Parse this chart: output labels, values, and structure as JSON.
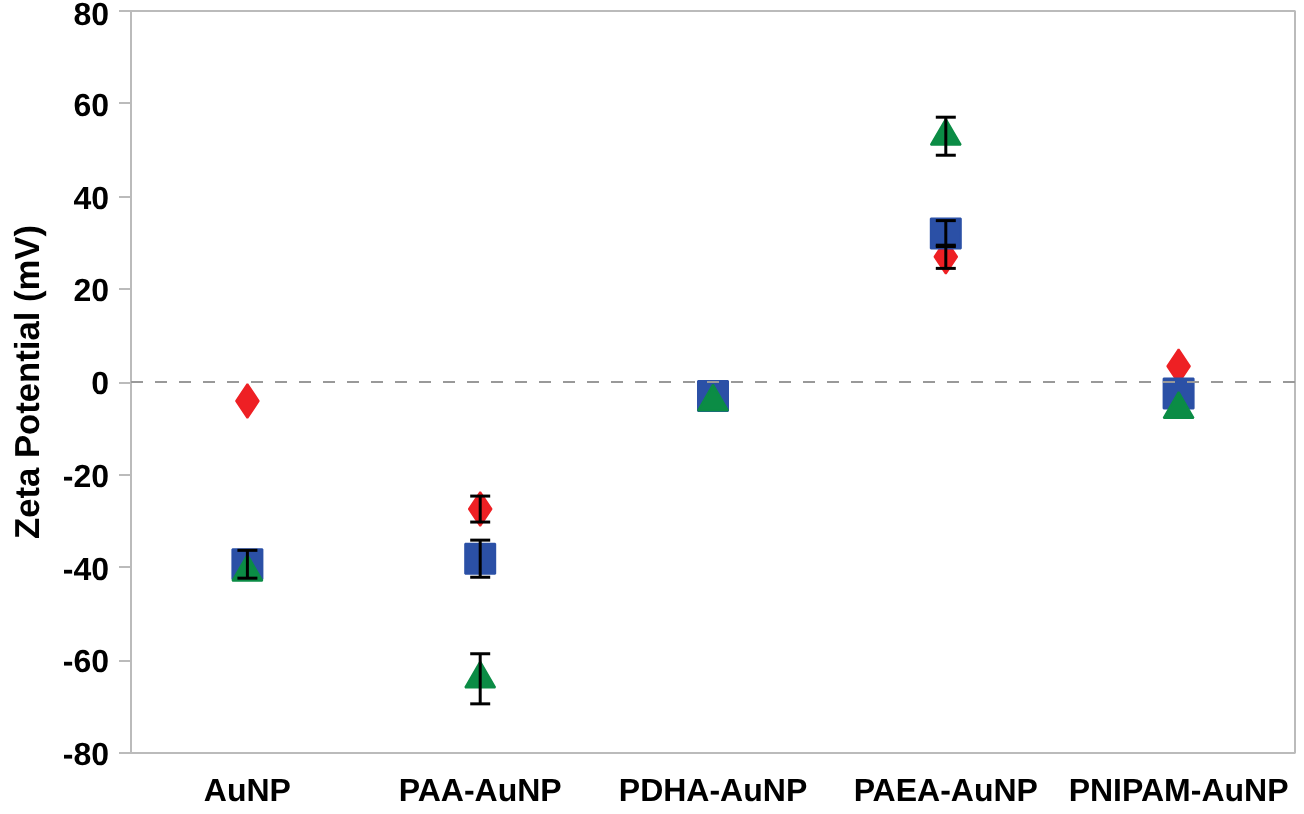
{
  "chart_data": {
    "type": "scatter",
    "ylabel": "Zeta Potential (mV)",
    "categories": [
      "AuNP",
      "PAA-AuNP",
      "PDHA-AuNP",
      "PAEA-AuNP",
      "PNIPAM-AuNP"
    ],
    "series": [
      {
        "color": "#ee2024",
        "marker": "diamond",
        "values": [
          -4.1,
          -27.4,
          null,
          27,
          3.4
        ],
        "errors": [
          null,
          2.8,
          null,
          2.5,
          null
        ]
      },
      {
        "color": "#2b50a6",
        "marker": "square",
        "values": [
          -39.3,
          -38.1,
          -3,
          32,
          -2.5
        ],
        "errors": [
          3,
          4,
          null,
          2.8,
          null
        ]
      },
      {
        "color": "#0b8c45",
        "marker": "triangle",
        "values": [
          -41,
          -64,
          -4.3,
          53,
          -5.9
        ],
        "errors": [
          null,
          5.4,
          null,
          4.1,
          null
        ]
      }
    ],
    "ylim": [
      -80,
      80
    ],
    "yticks": [
      -80,
      -60,
      -40,
      -20,
      0,
      20,
      40,
      60,
      80
    ],
    "grid": false,
    "ref_lines": [
      {
        "axis": "y",
        "value": 0,
        "color": "#999999",
        "line_style": "dashed"
      }
    ]
  }
}
